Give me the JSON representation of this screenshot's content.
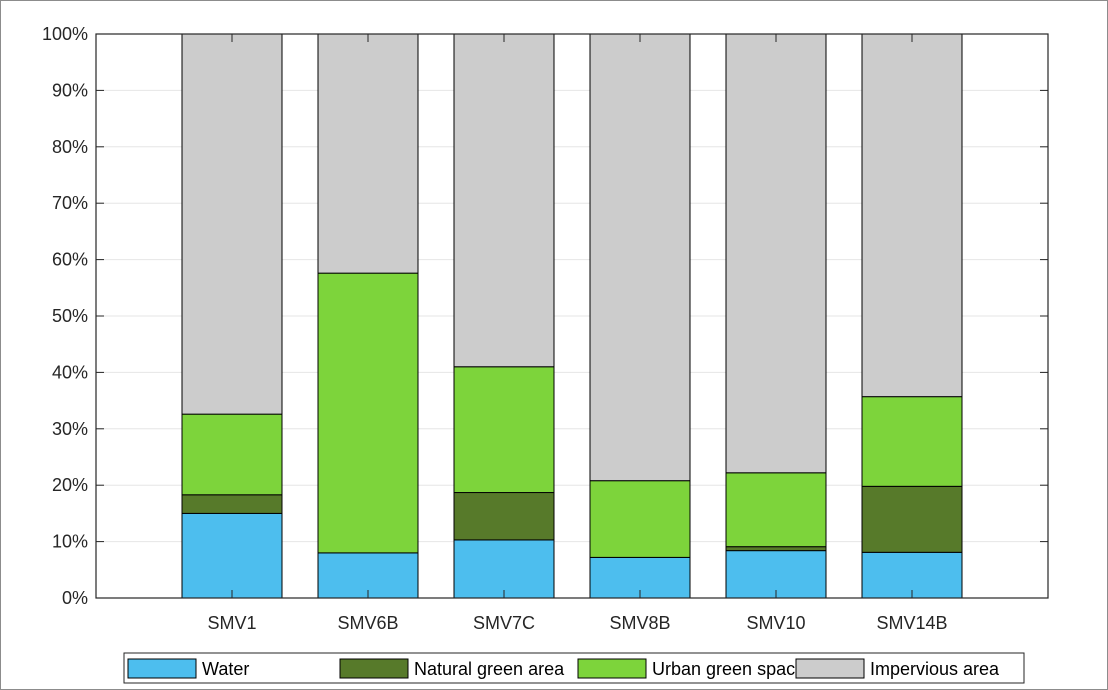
{
  "chart_data": {
    "type": "bar",
    "stacked": true,
    "categories": [
      "SMV1",
      "SMV6B",
      "SMV7C",
      "SMV8B",
      "SMV10",
      "SMV14B"
    ],
    "series": [
      {
        "name": "Water",
        "color": "#4dbeee",
        "values": [
          15.0,
          8.0,
          10.3,
          7.2,
          8.4,
          8.1
        ]
      },
      {
        "name": "Natural green area",
        "color": "#577a2a",
        "values": [
          3.3,
          0.0,
          8.4,
          0.0,
          0.7,
          11.7
        ]
      },
      {
        "name": "Urban green space",
        "color": "#7dd43b",
        "values": [
          14.3,
          49.6,
          22.3,
          13.6,
          13.1,
          15.9
        ]
      },
      {
        "name": "Impervious area",
        "color": "#cccccc",
        "values": [
          67.4,
          42.4,
          59.0,
          79.2,
          77.8,
          64.3
        ]
      }
    ],
    "ylim": [
      0,
      100
    ],
    "yticks": [
      0,
      10,
      20,
      30,
      40,
      50,
      60,
      70,
      80,
      90,
      100
    ],
    "ytick_labels": [
      "0%",
      "10%",
      "20%",
      "30%",
      "40%",
      "50%",
      "60%",
      "70%",
      "80%",
      "90%",
      "100%"
    ],
    "grid": "horizontal",
    "legend": "bottom"
  }
}
